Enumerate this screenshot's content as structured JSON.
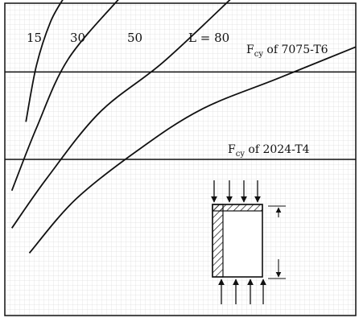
{
  "chart_data": {
    "type": "line",
    "title": "",
    "xlabel": "",
    "ylabel": "",
    "grid": true,
    "curve_label_values": [
      "15",
      "30",
      "50"
    ],
    "series": [
      {
        "name": "15",
        "points": [
          [
            0.06,
            0.62
          ],
          [
            0.09,
            0.8
          ],
          [
            0.13,
            0.94
          ],
          [
            0.17,
            1.02
          ]
        ]
      },
      {
        "name": "30",
        "points": [
          [
            0.02,
            0.4
          ],
          [
            0.09,
            0.6
          ],
          [
            0.18,
            0.82
          ],
          [
            0.33,
            1.02
          ]
        ]
      },
      {
        "name": "50",
        "points": [
          [
            0.02,
            0.28
          ],
          [
            0.12,
            0.44
          ],
          [
            0.27,
            0.65
          ],
          [
            0.45,
            0.81
          ],
          [
            0.65,
            1.02
          ]
        ]
      },
      {
        "name": "L = 80",
        "points": [
          [
            0.07,
            0.2
          ],
          [
            0.2,
            0.37
          ],
          [
            0.38,
            0.53
          ],
          [
            0.56,
            0.66
          ],
          [
            0.78,
            0.76
          ],
          [
            1.0,
            0.86
          ]
        ]
      }
    ],
    "reference_lines": [
      {
        "y": 0.78,
        "label_prefix": "F",
        "label_sub": "cy",
        "label_suffix": " of 7075-T6"
      },
      {
        "y": 0.5,
        "label_prefix": "F",
        "label_sub": "cy",
        "label_suffix": " of 2024-T4"
      }
    ],
    "inset": "hatched-panel-compression-sketch"
  }
}
